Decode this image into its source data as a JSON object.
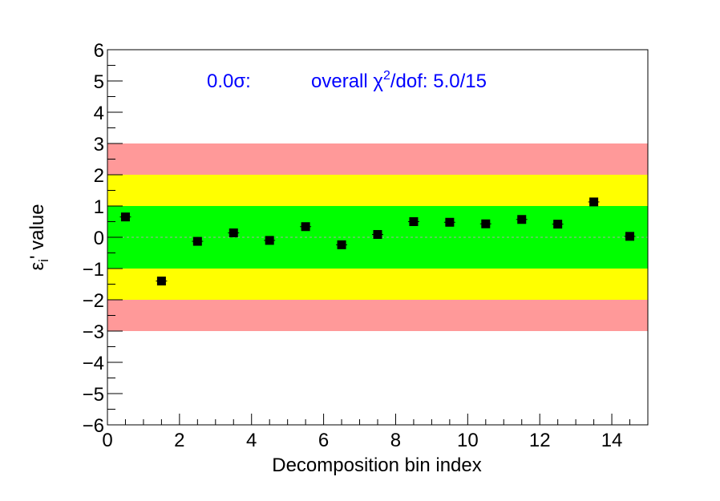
{
  "chart_data": {
    "type": "scatter",
    "xlabel": "Decomposition bin index",
    "ylabel_main": "ε",
    "ylabel_sub": "i",
    "ylabel_rest": "' value",
    "xlim": [
      0,
      15
    ],
    "ylim": [
      -6,
      6
    ],
    "xticks": [
      0,
      2,
      4,
      6,
      8,
      10,
      12,
      14
    ],
    "yticks": [
      -6,
      -5,
      -4,
      -3,
      -2,
      -1,
      0,
      1,
      2,
      3,
      4,
      5,
      6
    ],
    "bands": [
      {
        "low": -3,
        "high": 3,
        "color": "#ff9999"
      },
      {
        "low": -2,
        "high": 2,
        "color": "#ffff00"
      },
      {
        "low": -1,
        "high": 1,
        "color": "#00ff00"
      }
    ],
    "zero_line": true,
    "marker_color": "#000000",
    "x": [
      0.5,
      1.5,
      2.5,
      3.5,
      4.5,
      5.5,
      6.5,
      7.5,
      8.5,
      9.5,
      10.5,
      11.5,
      12.5,
      13.5,
      14.5
    ],
    "y": [
      0.65,
      -1.4,
      -0.13,
      0.14,
      -0.1,
      0.34,
      -0.24,
      0.09,
      0.5,
      0.48,
      0.43,
      0.57,
      0.42,
      1.13,
      0.03
    ],
    "annotation": {
      "sigma_text": "0.0σ:",
      "chi_prefix": "overall χ",
      "chi_sup": "2",
      "chi_suffix": "/dof: 5.0/15",
      "color": "#0000ff"
    }
  }
}
